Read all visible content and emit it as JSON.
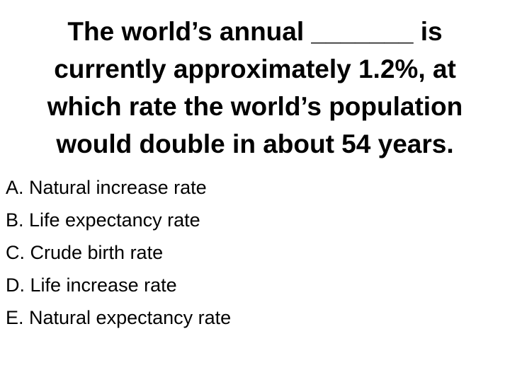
{
  "question_lines": [
    "The world’s annual _______ is",
    "currently approximately 1.2%, at",
    "which rate the world’s population",
    "would double in about 54 years."
  ],
  "options": [
    "A. Natural increase rate",
    "B. Life expectancy rate",
    "C. Crude birth rate",
    "D. Life increase rate",
    "E. Natural expectancy rate"
  ]
}
